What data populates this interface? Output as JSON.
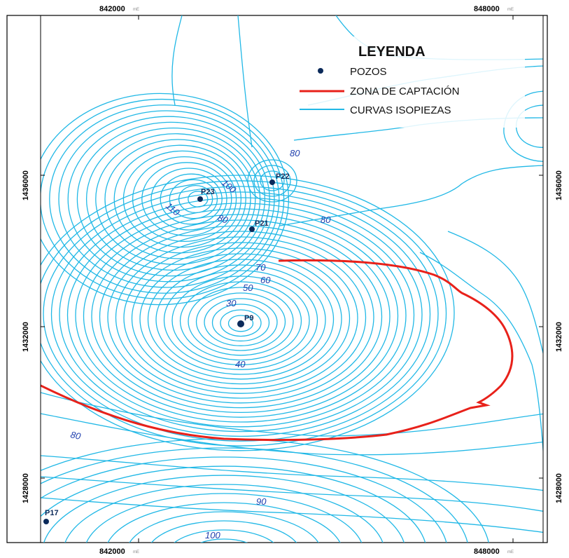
{
  "legend": {
    "title": "LEYENDA",
    "items": [
      {
        "label": "POZOS",
        "symbol": "dot",
        "color": "#0b2a5a"
      },
      {
        "label": "ZONA DE CAPTACIÓN",
        "symbol": "line",
        "color": "#e8211a"
      },
      {
        "label": "CURVAS ISOPIEZAS",
        "symbol": "line",
        "color": "#21b8e6"
      }
    ]
  },
  "coords": {
    "top": [
      "842000",
      "848000"
    ],
    "bottom": [
      "842000",
      "848000"
    ],
    "left": [
      "1436000",
      "1432000",
      "1428000"
    ],
    "right": [
      "1436000",
      "1432000",
      "1428000"
    ],
    "suffix": "mE"
  },
  "wells": [
    {
      "name": "P23"
    },
    {
      "name": "P22"
    },
    {
      "name": "P21"
    },
    {
      "name": "P9"
    },
    {
      "name": "P17"
    }
  ],
  "contour_labels": [
    "80",
    "100",
    "110",
    "80",
    "80",
    "70",
    "60",
    "50",
    "30",
    "40",
    "80",
    "90",
    "100"
  ],
  "colors": {
    "isopieza": "#21b8e6",
    "zona": "#e8211a",
    "pozo": "#0b2a5a",
    "label": "#1f3fae"
  }
}
